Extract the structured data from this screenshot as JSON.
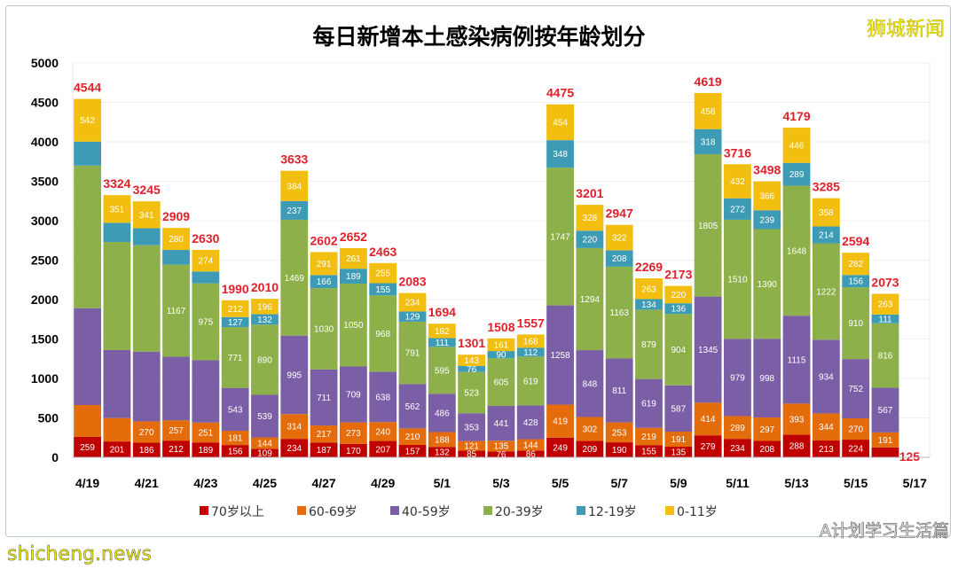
{
  "watermarks": {
    "top_right": "狮城新闻",
    "bottom_right": "A计划学习生活篇",
    "bottom_left": "shicheng.news"
  },
  "chart_data": {
    "type": "bar",
    "stacked": true,
    "title": "每日新增本土感染病例按年龄划分",
    "xlabel": "",
    "ylabel": "",
    "ylim": [
      0,
      5000
    ],
    "yticks": [
      0,
      500,
      1000,
      1500,
      2000,
      2500,
      3000,
      3500,
      4000,
      4500,
      5000
    ],
    "grid": true,
    "legend_position": "bottom",
    "categories": [
      "4/19",
      "4/20",
      "4/21",
      "4/22",
      "4/23",
      "4/24",
      "4/25",
      "4/26",
      "4/27",
      "4/28",
      "4/29",
      "4/30",
      "5/1",
      "5/2",
      "5/3",
      "5/4",
      "5/5",
      "5/6",
      "5/7",
      "5/8",
      "5/9",
      "5/10",
      "5/11",
      "5/12",
      "5/13",
      "5/14",
      "5/15",
      "5/16",
      "5/17"
    ],
    "xtick_labels": [
      "4/19",
      "4/21",
      "4/23",
      "4/25",
      "4/27",
      "4/29",
      "5/1",
      "5/3",
      "5/5",
      "5/7",
      "5/9",
      "5/11",
      "5/13",
      "5/15",
      "5/17"
    ],
    "totals": [
      4544,
      3324,
      3245,
      2909,
      2630,
      1990,
      2010,
      3633,
      2602,
      2652,
      2463,
      2083,
      1694,
      1301,
      1508,
      1557,
      4475,
      3201,
      2947,
      2269,
      2173,
      4619,
      3716,
      3498,
      4179,
      3285,
      2594,
      2073,
      null
    ],
    "series": [
      {
        "name": "70岁以上",
        "color": "#c00000",
        "values": [
          259,
          201,
          186,
          212,
          189,
          156,
          109,
          234,
          187,
          170,
          207,
          157,
          132,
          85,
          76,
          86,
          249,
          209,
          190,
          155,
          135,
          279,
          234,
          208,
          288,
          213,
          224,
          125,
          null
        ],
        "labels": [
          259,
          201,
          186,
          212,
          189,
          156,
          109,
          234,
          187,
          170,
          207,
          157,
          132,
          85,
          76,
          86,
          249,
          209,
          190,
          155,
          135,
          279,
          234,
          208,
          288,
          213,
          224,
          125,
          null
        ]
      },
      {
        "name": "60-69岁",
        "color": "#e46c0a",
        "values": [
          404,
          297,
          270,
          257,
          251,
          181,
          144,
          314,
          217,
          273,
          240,
          210,
          188,
          121,
          135,
          144,
          419,
          302,
          253,
          219,
          191,
          414,
          289,
          297,
          393,
          344,
          270,
          191,
          null
        ],
        "labels": [
          null,
          null,
          270,
          257,
          251,
          181,
          144,
          314,
          217,
          273,
          240,
          210,
          188,
          121,
          135,
          144,
          419,
          302,
          253,
          219,
          191,
          414,
          289,
          297,
          393,
          344,
          270,
          191,
          null
        ]
      },
      {
        "name": "40-59岁",
        "color": "#7b5fa6",
        "values": [
          1227,
          862,
          884,
          806,
          791,
          543,
          539,
          995,
          711,
          709,
          638,
          562,
          486,
          353,
          441,
          428,
          1258,
          848,
          811,
          619,
          587,
          1345,
          979,
          998,
          1115,
          934,
          752,
          567,
          null
        ],
        "labels": [
          null,
          null,
          null,
          null,
          null,
          543,
          539,
          995,
          711,
          709,
          638,
          562,
          486,
          353,
          441,
          428,
          1258,
          848,
          811,
          619,
          587,
          1345,
          979,
          998,
          1115,
          934,
          752,
          567,
          null
        ]
      },
      {
        "name": "20-39岁",
        "color": "#8db04a",
        "values": [
          1809,
          1370,
          1349,
          1167,
          975,
          771,
          890,
          1469,
          1030,
          1050,
          968,
          791,
          595,
          523,
          605,
          619,
          1747,
          1294,
          1163,
          879,
          904,
          1805,
          1510,
          1390,
          1648,
          1222,
          910,
          816,
          null
        ],
        "labels": [
          null,
          null,
          null,
          1167,
          975,
          771,
          890,
          1469,
          1030,
          1050,
          968,
          791,
          595,
          523,
          605,
          619,
          1747,
          1294,
          1163,
          879,
          904,
          1805,
          1510,
          1390,
          1648,
          1222,
          910,
          816,
          null
        ]
      },
      {
        "name": "12-19岁",
        "color": "#3e9bb5",
        "values": [
          303,
          243,
          215,
          187,
          150,
          127,
          132,
          237,
          166,
          189,
          155,
          129,
          111,
          76,
          90,
          112,
          348,
          220,
          208,
          134,
          136,
          318,
          272,
          239,
          289,
          214,
          156,
          111,
          null
        ],
        "labels": [
          null,
          null,
          null,
          null,
          null,
          127,
          132,
          237,
          166,
          189,
          155,
          129,
          111,
          76,
          90,
          112,
          348,
          220,
          208,
          134,
          136,
          318,
          272,
          239,
          289,
          214,
          156,
          111,
          null
        ]
      },
      {
        "name": "0-11岁",
        "color": "#f2bf10",
        "values": [
          542,
          351,
          341,
          280,
          274,
          212,
          196,
          384,
          291,
          261,
          255,
          234,
          182,
          143,
          161,
          168,
          454,
          328,
          322,
          263,
          220,
          458,
          432,
          366,
          446,
          358,
          282,
          263,
          null
        ],
        "labels": [
          542,
          351,
          341,
          280,
          274,
          212,
          196,
          384,
          291,
          261,
          255,
          234,
          182,
          143,
          161,
          168,
          454,
          328,
          322,
          263,
          220,
          458,
          432,
          366,
          446,
          358,
          282,
          263,
          null
        ]
      }
    ],
    "total_color": "#e0202a"
  }
}
